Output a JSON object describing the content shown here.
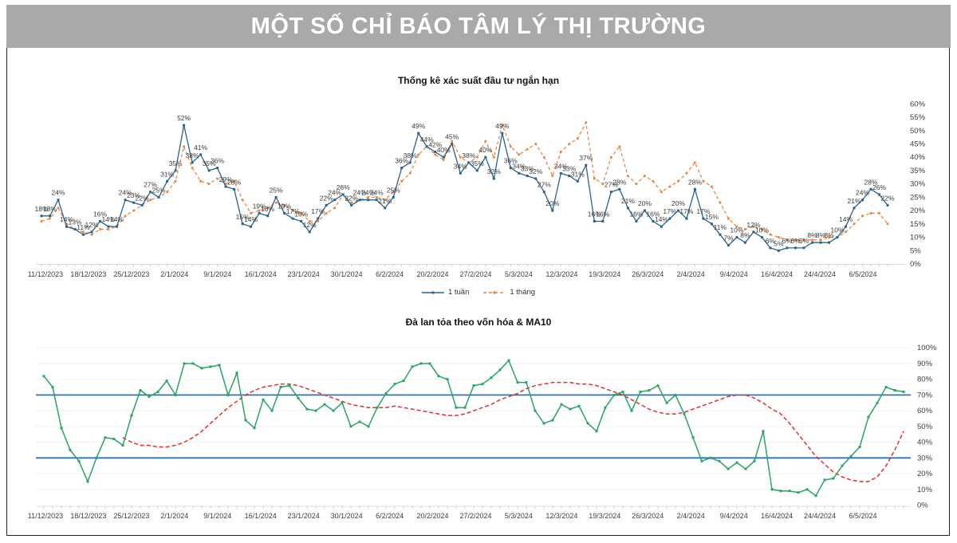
{
  "banner": {
    "title": "MỘT SỐ CHỈ BÁO TÂM LÝ THỊ TRƯỜNG",
    "bg_color": "#a9a9a9",
    "text_color": "#ffffff"
  },
  "chart_data": [
    {
      "type": "line",
      "title": "Thống kê xác suất đầu tư ngắn hạn",
      "ylim": [
        0,
        60
      ],
      "y_tick_step": 5,
      "y_tick_labels": [
        "0%",
        "5%",
        "10%",
        "15%",
        "20%",
        "25%",
        "30%",
        "35%",
        "40%",
        "45%",
        "50%",
        "55%",
        "60%"
      ],
      "y_axis_side": "right",
      "grid": false,
      "legend_position": "bottom",
      "x_tick_labels": [
        "11/12/2023",
        "18/12/2023",
        "25/12/2023",
        "2/1/2024",
        "9/1/2024",
        "16/1/2024",
        "23/1/2024",
        "30/1/2024",
        "6/2/2024",
        "20/2/2024",
        "27/2/2024",
        "5/3/2024",
        "12/3/2024",
        "19/3/2024",
        "26/3/2024",
        "2/4/2024",
        "9/4/2024",
        "16/4/2024",
        "24/4/2024",
        "6/5/2024"
      ],
      "series": [
        {
          "name": "1 tuần",
          "color": "#27638f",
          "style": "solid",
          "data_labels": true,
          "values": [
            18,
            18,
            24,
            14,
            13,
            11,
            12,
            16,
            14,
            14,
            24,
            23,
            22,
            27,
            25,
            31,
            35,
            52,
            38,
            41,
            35,
            36,
            29,
            28,
            15,
            14,
            19,
            18,
            25,
            19,
            17,
            16,
            12,
            17,
            22,
            24,
            26,
            22,
            24,
            24,
            24,
            21,
            25,
            36,
            38,
            49,
            44,
            42,
            40,
            45,
            34,
            38,
            35,
            40,
            32,
            49,
            36,
            34,
            33,
            32,
            27,
            20,
            34,
            33,
            31,
            37,
            16,
            16,
            27,
            28,
            21,
            16,
            20,
            16,
            14,
            17,
            20,
            17,
            28,
            17,
            15,
            11,
            7,
            10,
            8,
            12,
            10,
            6,
            5,
            6,
            6,
            6,
            8,
            8,
            8,
            10,
            14,
            21,
            24,
            28,
            26,
            22
          ]
        },
        {
          "name": "1 tháng",
          "color": "#ed7d31",
          "style": "dashed",
          "data_labels": false,
          "values": [
            16,
            17,
            21,
            15,
            13,
            12,
            11,
            13,
            13,
            14,
            18,
            20,
            22,
            24,
            25,
            27,
            31,
            44,
            36,
            31,
            30,
            32,
            30,
            31,
            24,
            19,
            20,
            21,
            23,
            22,
            20,
            19,
            16,
            16,
            19,
            21,
            26,
            23,
            24,
            25,
            25,
            24,
            27,
            31,
            34,
            41,
            44,
            41,
            39,
            46,
            40,
            38,
            40,
            46,
            40,
            52,
            44,
            41,
            43,
            45,
            40,
            33,
            42,
            45,
            47,
            53,
            32,
            30,
            40,
            44,
            33,
            30,
            33,
            31,
            27,
            29,
            31,
            34,
            38,
            31,
            29,
            23,
            17,
            14,
            13,
            14,
            13,
            11,
            10,
            9,
            9,
            9,
            9,
            9,
            10,
            10,
            12,
            15,
            18,
            19,
            19,
            15
          ]
        }
      ]
    },
    {
      "type": "line",
      "title": "Đà lan tỏa theo vốn hóa & MA10",
      "ylim": [
        0,
        100
      ],
      "y_tick_step": 10,
      "y_tick_labels": [
        "0%",
        "10%",
        "20%",
        "30%",
        "40%",
        "50%",
        "60%",
        "70%",
        "80%",
        "90%",
        "100%"
      ],
      "y_axis_side": "right",
      "grid": true,
      "reference_lines": [
        {
          "value": 70,
          "color": "#2d74b5"
        },
        {
          "value": 30,
          "color": "#2d74b5"
        }
      ],
      "x_tick_labels": [
        "11/12/2023",
        "18/12/2023",
        "25/12/2023",
        "2/1/2024",
        "9/1/2024",
        "16/1/2024",
        "23/1/2024",
        "30/1/2024",
        "6/2/2024",
        "20/2/2024",
        "27/2/2024",
        "5/3/2024",
        "12/3/2024",
        "19/3/2024",
        "26/3/2024",
        "2/4/2024",
        "9/4/2024",
        "16/4/2024",
        "24/4/2024",
        "6/5/2024"
      ],
      "series": [
        {
          "name": "Đà lan tỏa theo vốn hóa",
          "color": "#2aa365",
          "style": "solid",
          "values": [
            82,
            75,
            49,
            35,
            28,
            15,
            30,
            43,
            42,
            38,
            57,
            73,
            69,
            72,
            79,
            70,
            90,
            90,
            87,
            88,
            89,
            70,
            84,
            54,
            49,
            67,
            60,
            75,
            76,
            68,
            61,
            60,
            64,
            60,
            65,
            50,
            53,
            50,
            62,
            71,
            77,
            79,
            88,
            90,
            90,
            82,
            80,
            62,
            62,
            76,
            77,
            81,
            86,
            92,
            78,
            78,
            60,
            52,
            54,
            64,
            61,
            63,
            52,
            47,
            62,
            70,
            72,
            60,
            72,
            73,
            76,
            65,
            70,
            58,
            43,
            28,
            30,
            28,
            23,
            27,
            23,
            28,
            47,
            10,
            9,
            9,
            8,
            10,
            6,
            16,
            17,
            25,
            31,
            37,
            56,
            65,
            75,
            73,
            72
          ]
        },
        {
          "name": "MA10",
          "color": "#e02f2f",
          "style": "dashed",
          "values": [
            null,
            null,
            null,
            null,
            null,
            null,
            null,
            null,
            null,
            43,
            40,
            38,
            38,
            37,
            37,
            38,
            40,
            43,
            47,
            52,
            57,
            62,
            66,
            70,
            73,
            75,
            76,
            77,
            77,
            76,
            74,
            72,
            70,
            68,
            66,
            64,
            63,
            62,
            62,
            62,
            63,
            62,
            61,
            60,
            59,
            58,
            57,
            57,
            58,
            60,
            62,
            64,
            67,
            69,
            71,
            74,
            76,
            77,
            78,
            78,
            78,
            77,
            77,
            76,
            74,
            72,
            70,
            67,
            64,
            61,
            59,
            58,
            58,
            59,
            61,
            63,
            65,
            67,
            69,
            70,
            70,
            68,
            65,
            61,
            58,
            52,
            45,
            38,
            31,
            26,
            21,
            18,
            16,
            15,
            15,
            18,
            25,
            35,
            47
          ]
        }
      ]
    }
  ]
}
